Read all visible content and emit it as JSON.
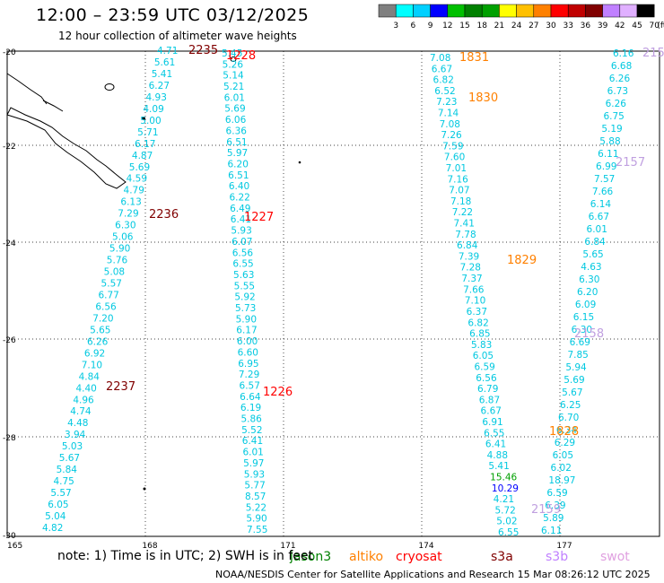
{
  "header": {
    "title": "12:00 – 23:59 UTC 03/12/2025",
    "subtitle": "12 hour collection of altimeter wave heights"
  },
  "colorbar": {
    "ticks": [
      "3",
      "6",
      "9",
      "12",
      "15",
      "18",
      "21",
      "24",
      "27",
      "30",
      "33",
      "36",
      "39",
      "42",
      "45",
      "70"
    ],
    "unit": "(ft)",
    "colors": [
      "#808080",
      "#00ffff",
      "#00d0ff",
      "#0000ff",
      "#00c000",
      "#008000",
      "#00a000",
      "#ffff00",
      "#ffc000",
      "#ff8000",
      "#ff0000",
      "#c00000",
      "#800000",
      "#c080ff",
      "#e0b0ff",
      "#000000"
    ]
  },
  "axes": {
    "lat_labels": [
      "-20",
      "-22",
      "-24",
      "-26",
      "-28",
      "-30"
    ],
    "lon_labels": [
      "165",
      "168",
      "171",
      "174",
      "177"
    ]
  },
  "time_labels": [
    {
      "text": "2235",
      "color": "#800000"
    },
    {
      "text": "1228",
      "color": "#ff0000"
    },
    {
      "text": "2236",
      "color": "#800000"
    },
    {
      "text": "1227",
      "color": "#ff0000"
    },
    {
      "text": "2237",
      "color": "#800000"
    },
    {
      "text": "1226",
      "color": "#ff0000"
    },
    {
      "text": "1831",
      "color": "#ff8000"
    },
    {
      "text": "1830",
      "color": "#ff8000"
    },
    {
      "text": "1829",
      "color": "#ff8000"
    },
    {
      "text": "1828",
      "color": "#ff8000"
    },
    {
      "text": "2157",
      "color": "#c0a0e0"
    },
    {
      "text": "2158",
      "color": "#c0a0e0"
    },
    {
      "text": "215",
      "color": "#c0a0e0"
    },
    {
      "text": "2159",
      "color": "#c0a0e0"
    }
  ],
  "tracks": {
    "track_a": [
      "4.71",
      "5.61",
      "5.41",
      "6.27",
      "4.93",
      "4.09",
      "5.00",
      "5.71",
      "6.17",
      "4.87",
      "5.69",
      "4.59",
      "4.79",
      "6.13",
      "7.29",
      "6.30",
      "5.06",
      "5.90",
      "5.76",
      "5.08",
      "5.57",
      "6.77",
      "6.56",
      "7.20",
      "5.65",
      "6.26",
      "6.92",
      "7.10",
      "4.84",
      "4.40",
      "4.96",
      "4.74",
      "4.48",
      "3.94",
      "5.03",
      "5.67",
      "5.84",
      "4.75",
      "5.57",
      "6.05",
      "5.04",
      "4.82"
    ],
    "track_b": [
      "5.45",
      "5.26",
      "5.14",
      "5.21",
      "6.01",
      "5.69",
      "6.06",
      "6.36",
      "6.51",
      "5.97",
      "6.20",
      "6.51",
      "6.40",
      "6.22",
      "6.49",
      "6.41",
      "5.93",
      "6.07",
      "6.56",
      "6.55",
      "5.63",
      "5.55",
      "5.92",
      "5.73",
      "5.90",
      "6.17",
      "6.00",
      "6.60",
      "6.95",
      "7.29",
      "6.57",
      "6.64",
      "6.19",
      "5.86",
      "5.52",
      "6.41",
      "6.01",
      "5.97",
      "5.93",
      "5.77",
      "8.57",
      "5.22",
      "5.90",
      "7.55"
    ],
    "track_c": [
      "7.08",
      "6.67",
      "6.82",
      "6.52",
      "7.23",
      "7.14",
      "7.08",
      "7.26",
      "7.59",
      "7.60",
      "7.01",
      "7.16",
      "7.07",
      "7.18",
      "7.22",
      "7.41",
      "7.78",
      "6.84",
      "7.39",
      "7.28",
      "7.37",
      "7.66",
      "7.10",
      "6.37",
      "6.82",
      "6.85",
      "5.83",
      "6.05",
      "6.59",
      "6.56",
      "6.79",
      "6.87",
      "6.67",
      "6.91",
      "6.55",
      "6.41",
      "4.88",
      "5.41",
      "15.46",
      "10.29",
      "4.21",
      "5.72",
      "5.02",
      "6.55"
    ],
    "track_d": [
      "6.16",
      "6.68",
      "6.26",
      "6.73",
      "6.26",
      "6.75",
      "5.19",
      "5.88",
      "6.11",
      "6.99",
      "7.57",
      "7.66",
      "6.14",
      "6.67",
      "6.01",
      "6.84",
      "5.65",
      "4.63",
      "6.30",
      "6.20",
      "6.09",
      "6.15",
      "6.30",
      "6.69",
      "7.85",
      "5.94",
      "5.69",
      "5.67",
      "6.25",
      "6.70",
      "6.34",
      "6.29",
      "6.05",
      "6.02",
      "18.97",
      "6.59",
      "6.39",
      "5.89",
      "6.11"
    ],
    "track_c_colors": {
      "15.46": "#00a000",
      "10.29": "#0000ff",
      "18.97": "#008000"
    }
  },
  "footer": {
    "note": "note:  1) Time is in UTC;  2) SWH is in feet",
    "satellites": [
      {
        "name": "jason3",
        "color": "#008000"
      },
      {
        "name": "altiko",
        "color": "#ff8000"
      },
      {
        "name": "cryosat",
        "color": "#ff0000"
      },
      {
        "name": "s3a",
        "color": "#800000"
      },
      {
        "name": "s3b",
        "color": "#c080ff"
      },
      {
        "name": "swot",
        "color": "#e0a0e0"
      }
    ],
    "credit": "NOAA/NESDIS Center for Satellite Applications and Research   15 Mar 08:26:12 UTC 2025"
  }
}
